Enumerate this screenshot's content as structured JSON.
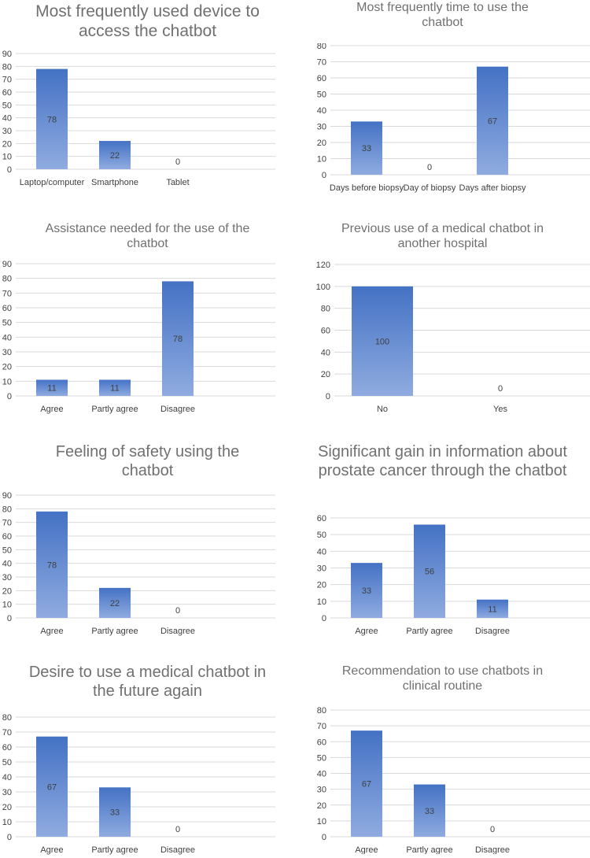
{
  "colors": {
    "bar_top": "#4472c4",
    "bar_bottom": "#8fabe0",
    "grid": "#d9d9d9",
    "axis_text": "#404040",
    "title": "#707070"
  },
  "chart_data": [
    {
      "type": "bar",
      "title": "Most frequently used device to access the chatbot",
      "categories": [
        "Laptop/computer",
        "Smartphone",
        "Tablet"
      ],
      "values": [
        78,
        22,
        0
      ],
      "ylim": [
        0,
        90
      ],
      "ticks": [
        0,
        10,
        20,
        30,
        40,
        50,
        60,
        70,
        80,
        90
      ],
      "xlabel": "",
      "ylabel": ""
    },
    {
      "type": "bar",
      "title": "Most frequently time to use the chatbot",
      "categories": [
        "Days before biopsy",
        "Day of biopsy",
        "Days after biopsy"
      ],
      "values": [
        33,
        0,
        67
      ],
      "ylim": [
        0,
        80
      ],
      "ticks": [
        0,
        10,
        20,
        30,
        40,
        50,
        60,
        70,
        80
      ],
      "xlabel": "",
      "ylabel": ""
    },
    {
      "type": "bar",
      "title": "Assistance needed for the use of the chatbot",
      "categories": [
        "Agree",
        "Partly agree",
        "Disagree"
      ],
      "values": [
        11,
        11,
        78
      ],
      "ylim": [
        0,
        90
      ],
      "ticks": [
        0,
        10,
        20,
        30,
        40,
        50,
        60,
        70,
        80,
        90
      ],
      "xlabel": "",
      "ylabel": ""
    },
    {
      "type": "bar",
      "title": "Previous use of a medical chatbot in another hospital",
      "categories": [
        "No",
        "Yes"
      ],
      "values": [
        100,
        0
      ],
      "ylim": [
        0,
        120
      ],
      "ticks": [
        0,
        20,
        40,
        60,
        80,
        100,
        120
      ],
      "xlabel": "",
      "ylabel": ""
    },
    {
      "type": "bar",
      "title": "Feeling of safety using the chatbot",
      "categories": [
        "Agree",
        "Partly agree",
        "Disagree"
      ],
      "values": [
        78,
        22,
        0
      ],
      "ylim": [
        0,
        90
      ],
      "ticks": [
        0,
        10,
        20,
        30,
        40,
        50,
        60,
        70,
        80,
        90
      ],
      "xlabel": "",
      "ylabel": ""
    },
    {
      "type": "bar",
      "title": "Significant gain in information about prostate cancer through the chatbot",
      "categories": [
        "Agree",
        "Partly agree",
        "Disagree"
      ],
      "values": [
        33,
        56,
        11
      ],
      "ylim": [
        0,
        60
      ],
      "ticks": [
        0,
        10,
        20,
        30,
        40,
        50,
        60
      ],
      "xlabel": "",
      "ylabel": ""
    },
    {
      "type": "bar",
      "title": "Desire to use a medical chatbot in the future again",
      "categories": [
        "Agree",
        "Partly agree",
        "Disagree"
      ],
      "values": [
        67,
        33,
        0
      ],
      "ylim": [
        0,
        80
      ],
      "ticks": [
        0,
        10,
        20,
        30,
        40,
        50,
        60,
        70,
        80
      ],
      "xlabel": "",
      "ylabel": ""
    },
    {
      "type": "bar",
      "title": "Recommendation to use chatbots in clinical routine",
      "categories": [
        "Agree",
        "Partly agree",
        "Disagree"
      ],
      "values": [
        67,
        33,
        0
      ],
      "ylim": [
        0,
        80
      ],
      "ticks": [
        0,
        10,
        20,
        30,
        40,
        50,
        60,
        70,
        80
      ],
      "xlabel": "",
      "ylabel": ""
    }
  ]
}
